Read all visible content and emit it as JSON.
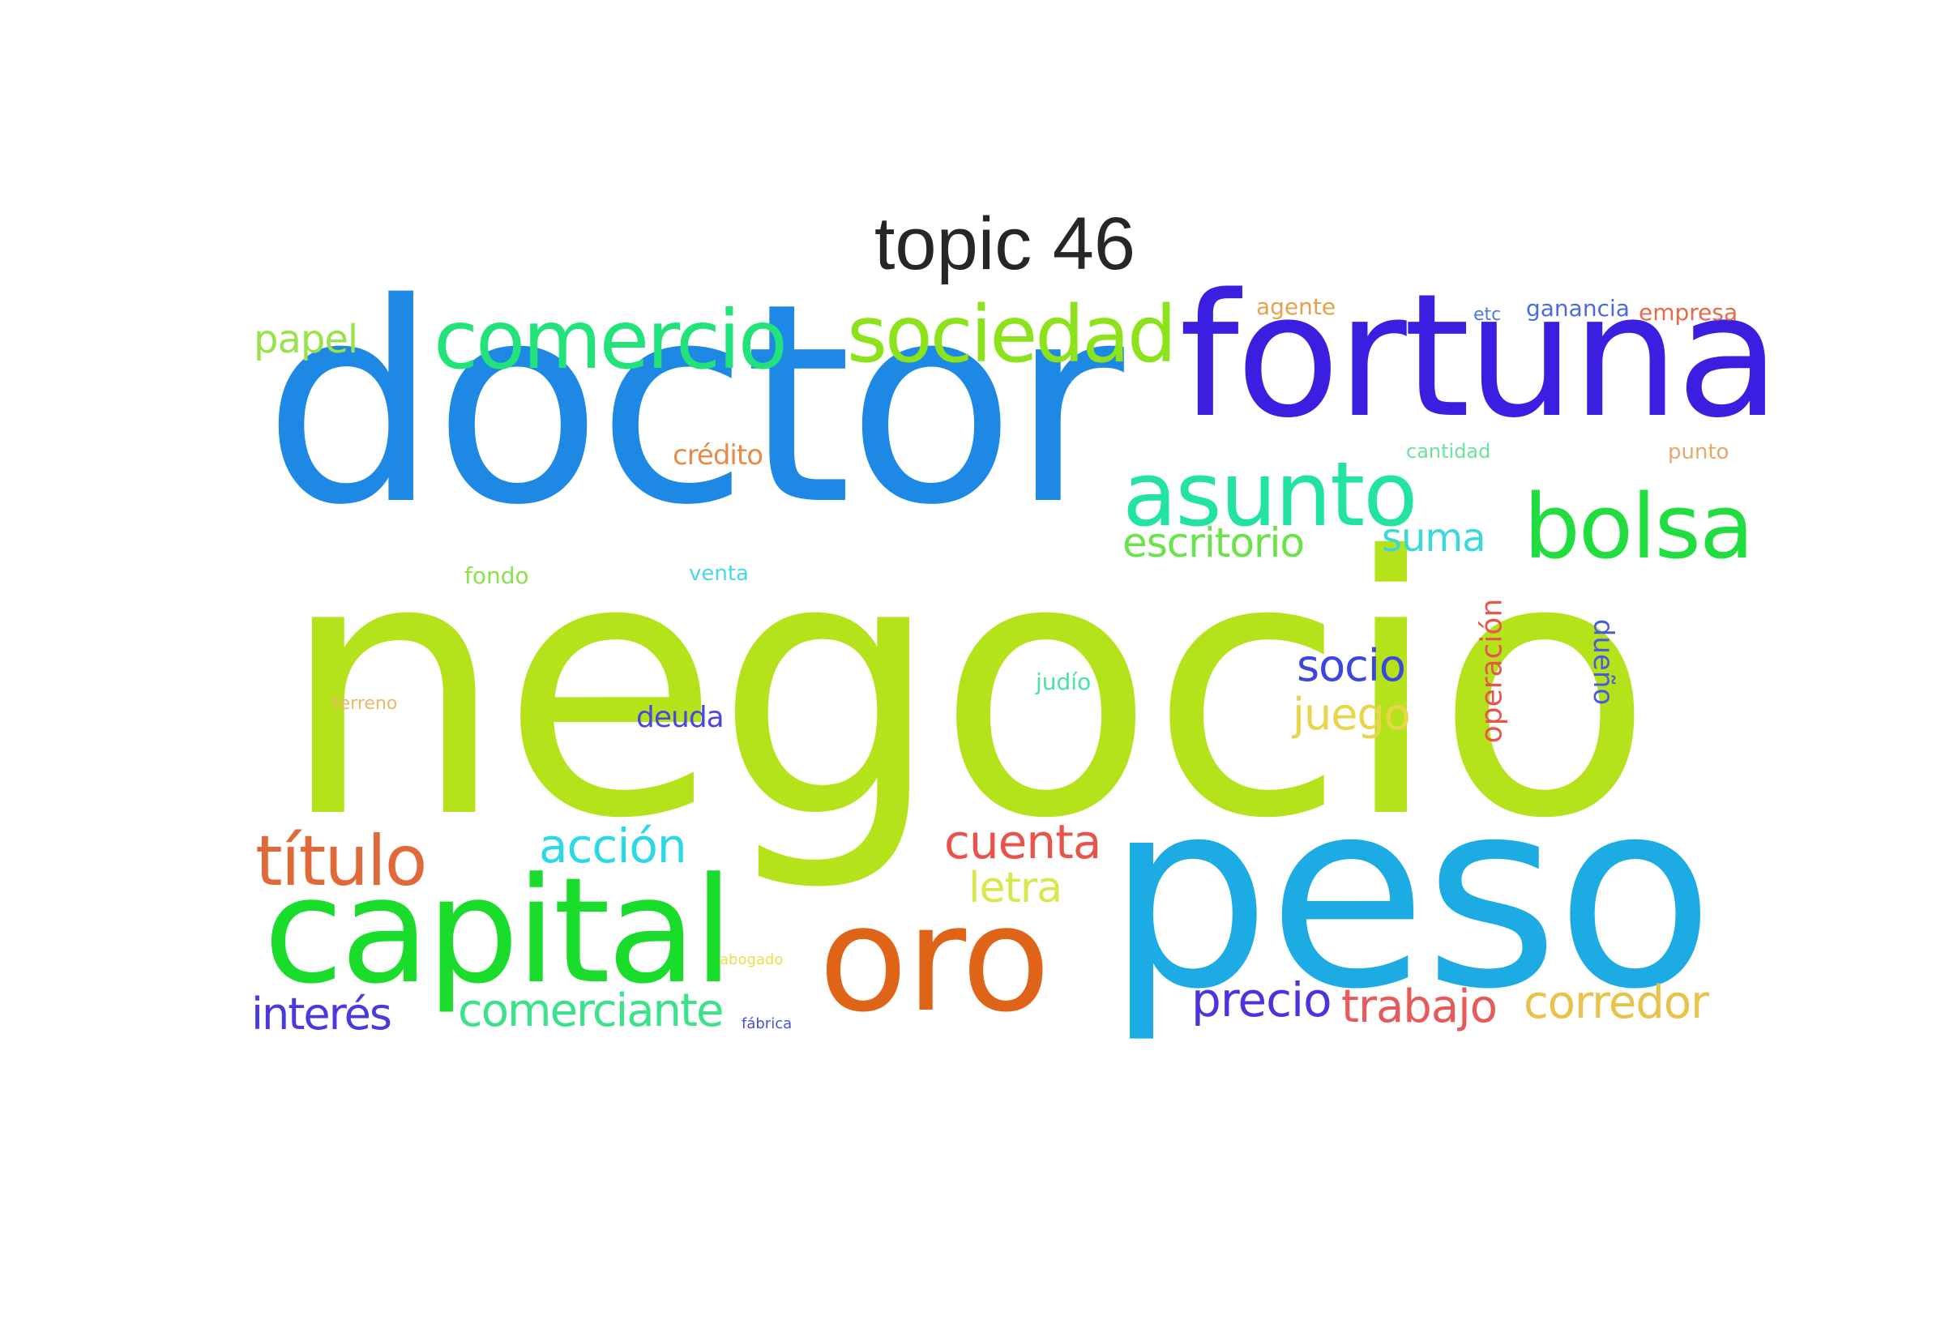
{
  "title": "topic 46",
  "words": [
    {
      "text": "negocio",
      "color": "#b5e31b",
      "weight": 1.0
    },
    {
      "text": "doctor",
      "color": "#1e88e5",
      "weight": 0.78
    },
    {
      "text": "peso",
      "color": "#1cace3",
      "weight": 0.72
    },
    {
      "text": "fortuna",
      "color": "#3a1fe0",
      "weight": 0.5
    },
    {
      "text": "oro",
      "color": "#e06418",
      "weight": 0.4
    },
    {
      "text": "capital",
      "color": "#19dd2a",
      "weight": 0.4
    },
    {
      "text": "asunto",
      "color": "#22e3a0",
      "weight": 0.26
    },
    {
      "text": "bolsa",
      "color": "#22dd40",
      "weight": 0.26
    },
    {
      "text": "comercio",
      "color": "#22e37a",
      "weight": 0.24
    },
    {
      "text": "sociedad",
      "color": "#8ce31b",
      "weight": 0.23
    },
    {
      "text": "título",
      "color": "#e0693a",
      "weight": 0.23
    },
    {
      "text": "cuenta",
      "color": "#e8534a",
      "weight": 0.15
    },
    {
      "text": "acción",
      "color": "#2ad8e6",
      "weight": 0.15
    },
    {
      "text": "comerciante",
      "color": "#3ae28a",
      "weight": 0.15
    },
    {
      "text": "precio",
      "color": "#4a35dd",
      "weight": 0.15
    },
    {
      "text": "trabajo",
      "color": "#e85a5a",
      "weight": 0.15
    },
    {
      "text": "corredor",
      "color": "#e8c24a",
      "weight": 0.15
    },
    {
      "text": "interés",
      "color": "#4a3add",
      "weight": 0.14
    },
    {
      "text": "escritorio",
      "color": "#6ae24a",
      "weight": 0.14
    },
    {
      "text": "socio",
      "color": "#3a48dd",
      "weight": 0.14
    },
    {
      "text": "juego",
      "color": "#e8d64a",
      "weight": 0.14
    },
    {
      "text": "letra",
      "color": "#d8e84a",
      "weight": 0.13
    },
    {
      "text": "suma",
      "color": "#3ad8d8",
      "weight": 0.13
    },
    {
      "text": "papel",
      "color": "#9ae24a",
      "weight": 0.12
    },
    {
      "text": "operación",
      "color": "#e8564a",
      "weight": 0.1
    },
    {
      "text": "dueño",
      "color": "#4a5ae0",
      "weight": 0.09
    },
    {
      "text": "deuda",
      "color": "#4a48dd",
      "weight": 0.1
    },
    {
      "text": "crédito",
      "color": "#e88a4a",
      "weight": 0.09
    },
    {
      "text": "venta",
      "color": "#4ad8e8",
      "weight": 0.06
    },
    {
      "text": "fondo",
      "color": "#8ae24a",
      "weight": 0.06
    },
    {
      "text": "judío",
      "color": "#4ae2a0",
      "weight": 0.06
    },
    {
      "text": "agente",
      "color": "#e8a04a",
      "weight": 0.06
    },
    {
      "text": "ganancia",
      "color": "#4a6ae0",
      "weight": 0.06
    },
    {
      "text": "empresa",
      "color": "#e86a4a",
      "weight": 0.06
    },
    {
      "text": "cantidad",
      "color": "#6ae2a0",
      "weight": 0.05
    },
    {
      "text": "punto",
      "color": "#e8a86a",
      "weight": 0.05
    },
    {
      "text": "etc",
      "color": "#4a7ae0",
      "weight": 0.04
    },
    {
      "text": "terreno",
      "color": "#e8b86a",
      "weight": 0.04
    },
    {
      "text": "abogado",
      "color": "#e8e04a",
      "weight": 0.04
    },
    {
      "text": "fábrica",
      "color": "#4a4ae0",
      "weight": 0.04
    }
  ]
}
